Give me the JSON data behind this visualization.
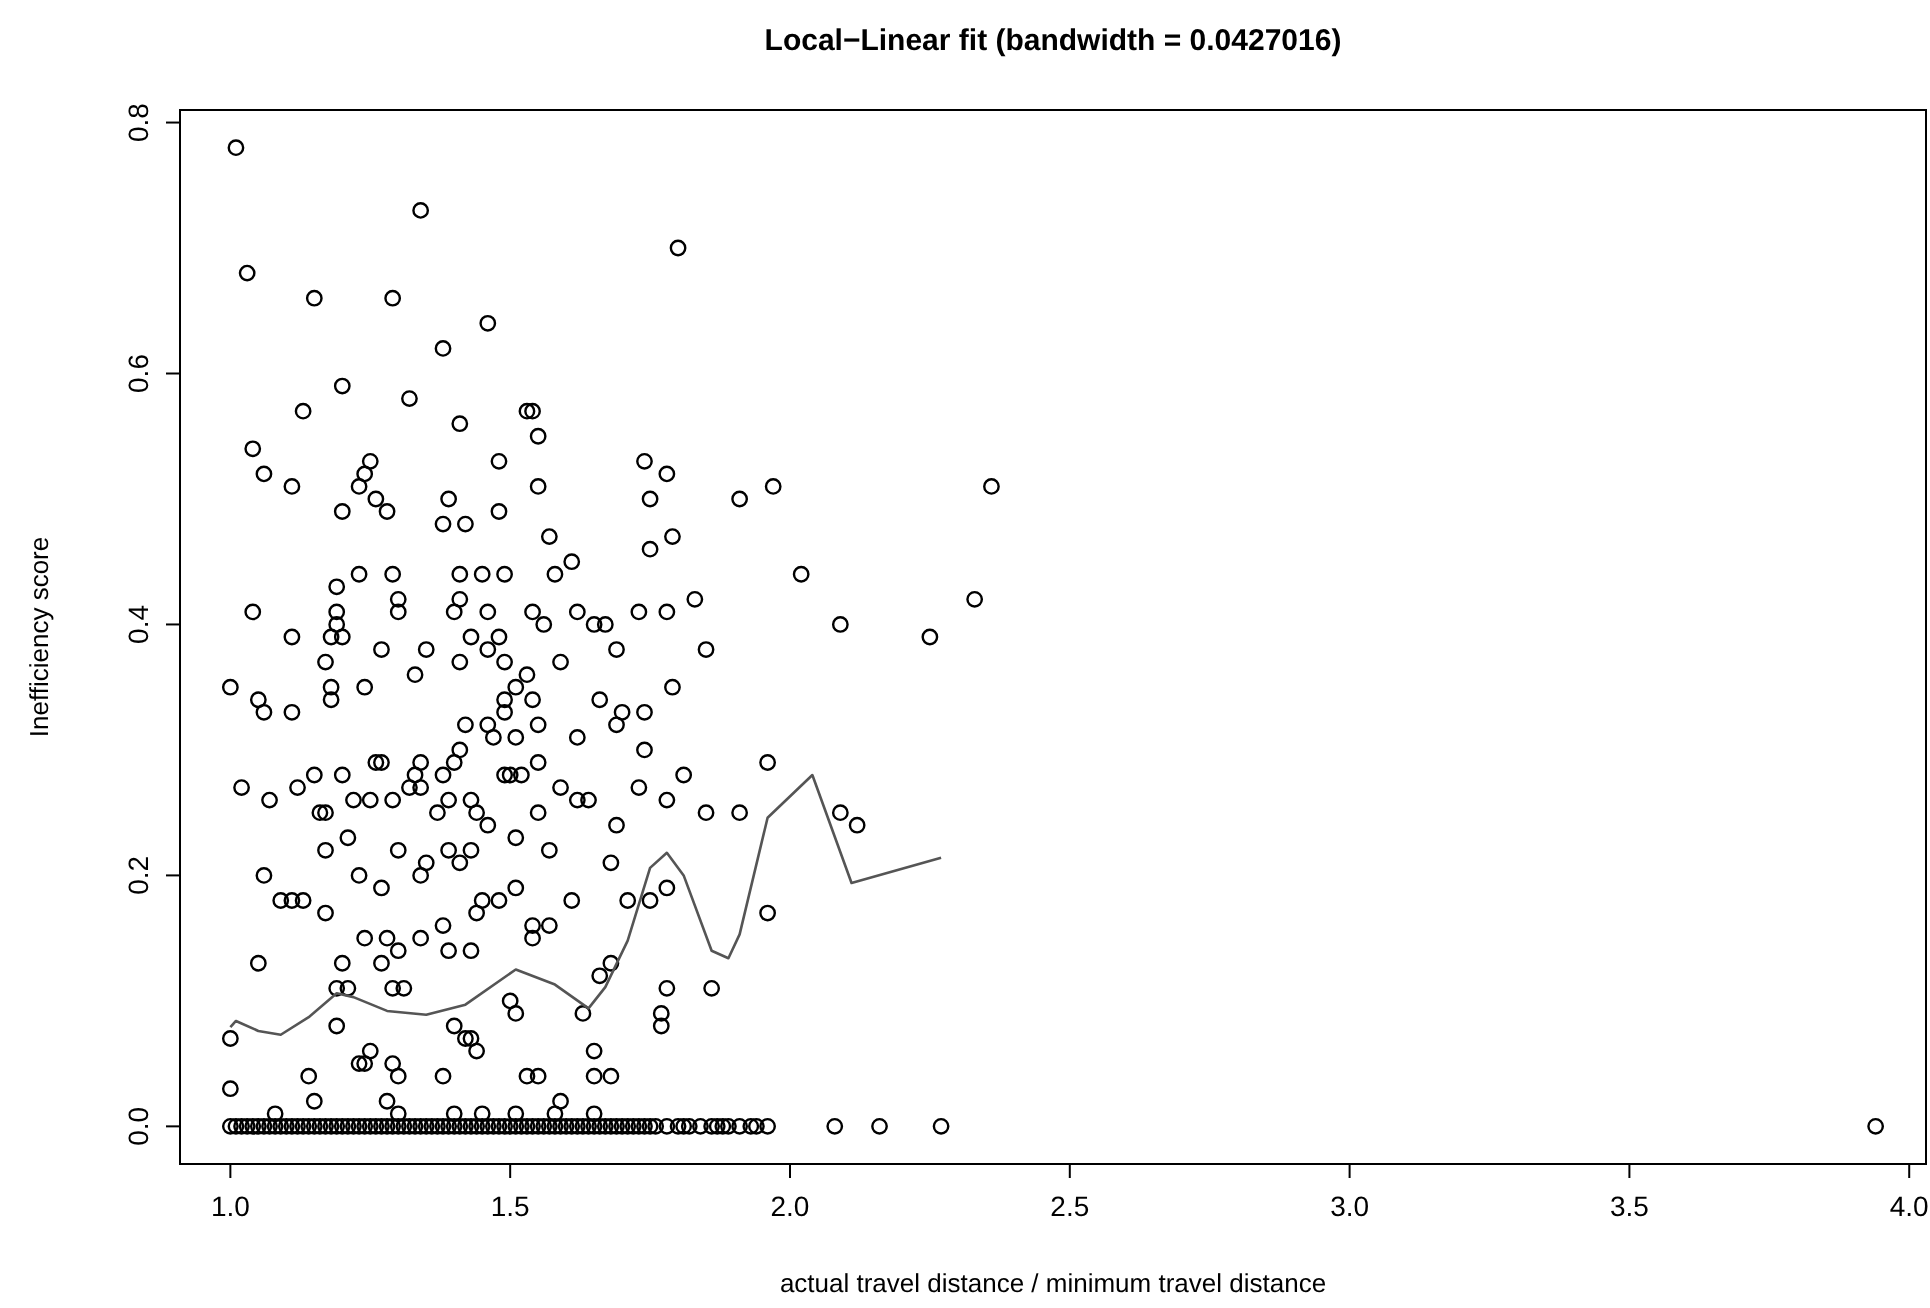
{
  "chart_data": {
    "type": "scatter",
    "title": "Local−Linear fit (bandwidth = 0.0427016)",
    "xlabel": "actual travel distance / minimum travel distance",
    "ylabel": "Inefficiency score",
    "xlim": [
      0.91,
      4.03
    ],
    "ylim": [
      -0.03,
      0.81
    ],
    "xticks": [
      {
        "value": 1,
        "label": "1.0"
      },
      {
        "value": 1.5,
        "label": "1.5"
      },
      {
        "value": 2,
        "label": "2.0"
      },
      {
        "value": 2.5,
        "label": "2.5"
      },
      {
        "value": 3,
        "label": "3.0"
      },
      {
        "value": 3.5,
        "label": "3.5"
      },
      {
        "value": 4,
        "label": "4.0"
      }
    ],
    "yticks": [
      {
        "value": 0,
        "label": "0.0"
      },
      {
        "value": 0.2,
        "label": "0.2"
      },
      {
        "value": 0.4,
        "label": "0.4"
      },
      {
        "value": 0.6,
        "label": "0.6"
      },
      {
        "value": 0.8,
        "label": "0.8"
      }
    ],
    "grid": false,
    "marker": "circle",
    "series": [
      {
        "color": "#000000",
        "x": [
          1.01,
          1.34,
          1.03,
          1.15,
          1.29,
          1.46,
          1.38,
          1.2,
          1.32,
          1.13,
          1.53,
          1.54,
          1.55,
          1.41,
          1.04,
          1.06,
          1.25,
          1.24,
          1.11,
          1.23,
          1.48,
          1.55,
          1.2,
          1.26,
          1.28,
          1.39,
          1.38,
          1.42,
          1.48,
          1.57,
          1.61,
          1.58,
          1.74,
          1.78,
          1.75,
          1.75,
          1.23,
          1.29,
          1.19,
          1.41,
          1.45,
          1.49,
          1.04,
          1.11,
          1.19,
          1.19,
          1.18,
          1.2,
          1.3,
          1.3,
          1.41,
          1.4,
          1.46,
          1.43,
          1.48,
          1.54,
          1.56,
          1.62,
          1.65,
          1.67,
          1.69,
          1.73,
          1.78,
          1.27,
          1.35,
          1.46,
          1.8,
          1.91,
          1.97,
          2.36,
          1.79,
          2.02,
          2.33,
          1.83,
          2.09,
          2.25,
          1.85,
          1.17,
          1.33,
          1.41,
          1.49,
          1.59,
          1.0,
          1.05,
          1.06,
          1.11,
          1.18,
          1.18,
          1.24,
          1.49,
          1.51,
          1.53,
          1.54,
          1.49,
          1.66,
          1.7,
          1.74,
          1.79,
          1.42,
          1.46,
          1.55,
          1.69,
          1.47,
          1.51,
          1.62,
          1.41,
          1.4,
          1.34,
          1.26,
          1.27,
          1.74,
          1.55,
          1.49,
          1.5,
          1.52,
          1.38,
          1.2,
          1.15,
          1.12,
          1.02,
          1.07,
          1.16,
          1.17,
          1.22,
          1.25,
          1.29,
          1.32,
          1.33,
          1.34,
          1.37,
          1.39,
          1.43,
          1.44,
          1.55,
          1.59,
          1.62,
          1.64,
          1.73,
          1.78,
          1.69,
          1.46,
          1.51,
          1.57,
          1.21,
          1.17,
          1.3,
          1.23,
          1.27,
          1.34,
          1.35,
          1.39,
          1.41,
          1.43,
          1.68,
          1.06,
          1.09,
          1.11,
          1.13,
          1.17,
          1.44,
          1.45,
          1.48,
          1.51,
          1.61,
          1.71,
          1.75,
          1.78,
          1.24,
          1.28,
          1.34,
          1.38,
          1.39,
          1.43,
          1.54,
          1.54,
          1.57,
          1.05,
          1.2,
          1.27,
          1.3,
          1.29,
          1.31,
          1.68,
          1.66,
          1.19,
          1.21,
          1.5,
          1.51,
          1.63,
          1.78,
          1.77,
          1.77,
          1.0,
          1.19,
          1.4,
          1.42,
          1.43,
          1.44,
          1.25,
          1.24,
          1.23,
          1.29,
          1.3,
          1.38,
          1.14,
          1.15,
          1.0,
          1.08,
          1.28,
          1.53,
          1.55,
          1.65,
          1.65,
          1.68,
          1.59,
          1.51,
          1.58,
          1.45,
          1.4,
          1.3,
          1.65,
          1.96,
          1.81,
          1.85,
          1.91,
          2.09,
          2.12,
          1.96,
          1.86
        ],
        "values": [
          0.78,
          0.73,
          0.68,
          0.66,
          0.66,
          0.64,
          0.62,
          0.59,
          0.58,
          0.57,
          0.57,
          0.57,
          0.55,
          0.56,
          0.54,
          0.52,
          0.53,
          0.52,
          0.51,
          0.51,
          0.53,
          0.51,
          0.49,
          0.5,
          0.49,
          0.5,
          0.48,
          0.48,
          0.49,
          0.47,
          0.45,
          0.44,
          0.53,
          0.52,
          0.5,
          0.46,
          0.44,
          0.44,
          0.43,
          0.44,
          0.44,
          0.44,
          0.41,
          0.39,
          0.41,
          0.4,
          0.39,
          0.39,
          0.42,
          0.41,
          0.42,
          0.41,
          0.41,
          0.39,
          0.39,
          0.41,
          0.4,
          0.41,
          0.4,
          0.4,
          0.38,
          0.41,
          0.41,
          0.38,
          0.38,
          0.38,
          0.7,
          0.5,
          0.51,
          0.51,
          0.47,
          0.44,
          0.42,
          0.42,
          0.4,
          0.39,
          0.38,
          0.37,
          0.36,
          0.37,
          0.37,
          0.37,
          0.35,
          0.34,
          0.33,
          0.33,
          0.35,
          0.34,
          0.35,
          0.34,
          0.35,
          0.36,
          0.34,
          0.33,
          0.34,
          0.33,
          0.33,
          0.35,
          0.32,
          0.32,
          0.32,
          0.32,
          0.31,
          0.31,
          0.31,
          0.3,
          0.29,
          0.29,
          0.29,
          0.29,
          0.3,
          0.29,
          0.28,
          0.28,
          0.28,
          0.28,
          0.28,
          0.28,
          0.27,
          0.27,
          0.26,
          0.25,
          0.25,
          0.26,
          0.26,
          0.26,
          0.27,
          0.28,
          0.27,
          0.25,
          0.26,
          0.26,
          0.25,
          0.25,
          0.27,
          0.26,
          0.26,
          0.27,
          0.26,
          0.24,
          0.24,
          0.23,
          0.22,
          0.23,
          0.22,
          0.22,
          0.2,
          0.19,
          0.2,
          0.21,
          0.22,
          0.21,
          0.22,
          0.21,
          0.2,
          0.18,
          0.18,
          0.18,
          0.17,
          0.17,
          0.18,
          0.18,
          0.19,
          0.18,
          0.18,
          0.18,
          0.19,
          0.15,
          0.15,
          0.15,
          0.16,
          0.14,
          0.14,
          0.16,
          0.15,
          0.16,
          0.13,
          0.13,
          0.13,
          0.14,
          0.11,
          0.11,
          0.13,
          0.12,
          0.11,
          0.11,
          0.1,
          0.09,
          0.09,
          0.11,
          0.09,
          0.08,
          0.07,
          0.08,
          0.08,
          0.07,
          0.07,
          0.06,
          0.06,
          0.05,
          0.05,
          0.05,
          0.04,
          0.04,
          0.04,
          0.02,
          0.03,
          0.01,
          0.02,
          0.04,
          0.04,
          0.06,
          0.04,
          0.04,
          0.02,
          0.01,
          0.01,
          0.01,
          0.01,
          0.01,
          0.01,
          0.29,
          0.28,
          0.25,
          0.25,
          0.25,
          0.24,
          0.17,
          0.11
        ]
      },
      {
        "color": "#000000",
        "x": [
          1.0,
          1.01,
          1.02,
          1.03,
          1.04,
          1.05,
          1.06,
          1.07,
          1.08,
          1.09,
          1.1,
          1.11,
          1.12,
          1.13,
          1.14,
          1.15,
          1.16,
          1.17,
          1.18,
          1.19,
          1.2,
          1.21,
          1.22,
          1.23,
          1.24,
          1.25,
          1.26,
          1.27,
          1.28,
          1.29,
          1.3,
          1.31,
          1.32,
          1.33,
          1.34,
          1.35,
          1.36,
          1.37,
          1.38,
          1.39,
          1.4,
          1.41,
          1.42,
          1.43,
          1.44,
          1.45,
          1.46,
          1.47,
          1.48,
          1.49,
          1.5,
          1.51,
          1.52,
          1.53,
          1.54,
          1.55,
          1.56,
          1.57,
          1.58,
          1.59,
          1.6,
          1.61,
          1.62,
          1.63,
          1.64,
          1.65,
          1.66,
          1.67,
          1.68,
          1.69,
          1.7,
          1.71,
          1.72,
          1.73,
          1.74,
          1.75,
          1.76,
          1.78,
          1.8,
          1.81,
          1.82,
          1.84,
          1.86,
          1.87,
          1.88,
          1.89,
          1.91,
          1.93,
          1.94,
          1.96,
          2.08,
          2.16,
          2.27,
          3.94
        ],
        "values": [
          0,
          0,
          0,
          0,
          0,
          0,
          0,
          0,
          0,
          0,
          0,
          0,
          0,
          0,
          0,
          0,
          0,
          0,
          0,
          0,
          0,
          0,
          0,
          0,
          0,
          0,
          0,
          0,
          0,
          0,
          0,
          0,
          0,
          0,
          0,
          0,
          0,
          0,
          0,
          0,
          0,
          0,
          0,
          0,
          0,
          0,
          0,
          0,
          0,
          0,
          0,
          0,
          0,
          0,
          0,
          0,
          0,
          0,
          0,
          0,
          0,
          0,
          0,
          0,
          0,
          0,
          0,
          0,
          0,
          0,
          0,
          0,
          0,
          0,
          0,
          0,
          0,
          0,
          0,
          0,
          0,
          0,
          0,
          0,
          0,
          0,
          0,
          0,
          0,
          0,
          0,
          0,
          0,
          0
        ]
      },
      {
        "type": "line",
        "color": "#555555",
        "marker": "none",
        "line_style": "solid",
        "x": [
          1.0,
          1.01,
          1.05,
          1.09,
          1.14,
          1.19,
          1.22,
          1.28,
          1.35,
          1.42,
          1.51,
          1.58,
          1.64,
          1.67,
          1.71,
          1.75,
          1.78,
          1.81,
          1.86,
          1.89,
          1.91,
          1.96,
          2.04,
          2.11,
          2.27
        ],
        "values": [
          0.079,
          0.084,
          0.076,
          0.073,
          0.087,
          0.106,
          0.103,
          0.092,
          0.089,
          0.097,
          0.125,
          0.113,
          0.094,
          0.111,
          0.148,
          0.206,
          0.218,
          0.2,
          0.14,
          0.134,
          0.153,
          0.246,
          0.28,
          0.194,
          0.214
        ]
      }
    ]
  }
}
